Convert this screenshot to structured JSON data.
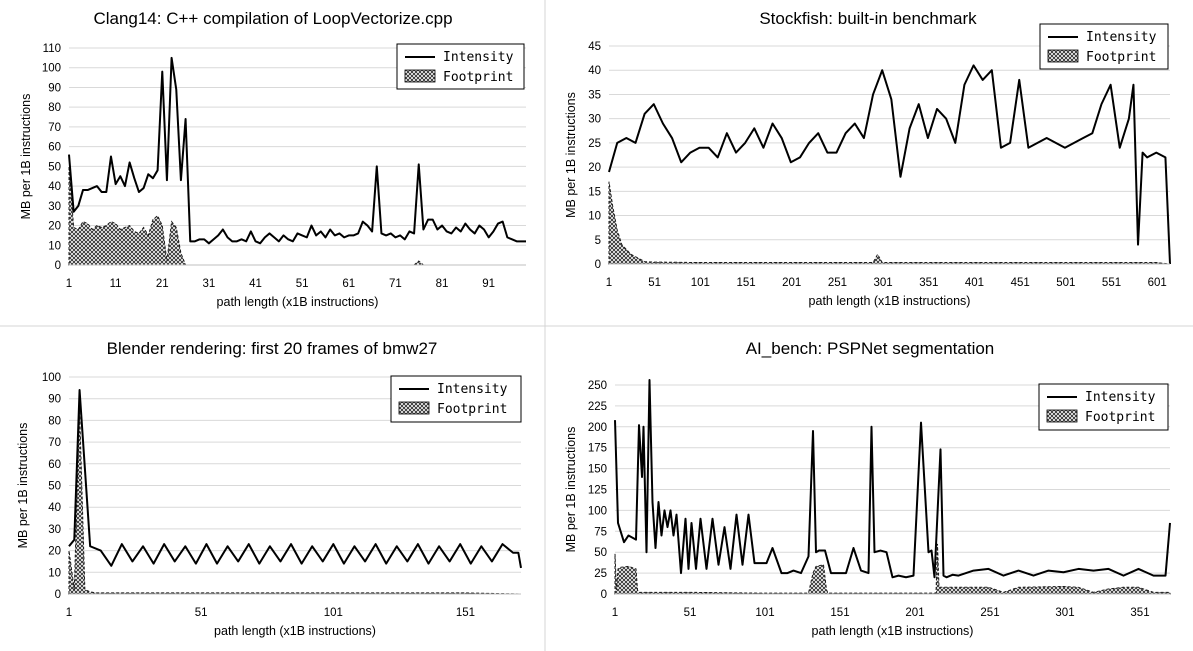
{
  "chart_data": [
    {
      "type": "area",
      "title": "Clang14: C++ compilation of LoopVectorize.cpp",
      "xlabel": "path length (x1B instructions)",
      "ylabel": "MB per 1B instructions",
      "xlim": [
        1,
        99
      ],
      "ylim": [
        0,
        110
      ],
      "xticks": [
        1,
        11,
        21,
        31,
        41,
        51,
        61,
        71,
        81,
        91
      ],
      "yticks": [
        0,
        10,
        20,
        30,
        40,
        50,
        60,
        70,
        80,
        90,
        100,
        110
      ],
      "legend_position": "top-right",
      "series": [
        {
          "name": "Intensity",
          "style": "line",
          "x": [
            1,
            2,
            3,
            4,
            5,
            6,
            7,
            8,
            9,
            10,
            11,
            12,
            13,
            14,
            15,
            16,
            17,
            18,
            19,
            20,
            21,
            22,
            23,
            24,
            25,
            26,
            27,
            28,
            29,
            30,
            31,
            32,
            33,
            34,
            35,
            36,
            37,
            38,
            39,
            40,
            41,
            42,
            43,
            44,
            45,
            46,
            47,
            48,
            49,
            50,
            51,
            52,
            53,
            54,
            55,
            56,
            57,
            58,
            59,
            60,
            61,
            62,
            63,
            64,
            65,
            66,
            67,
            68,
            69,
            70,
            71,
            72,
            73,
            74,
            75,
            76,
            77,
            78,
            79,
            80,
            81,
            82,
            83,
            84,
            85,
            86,
            87,
            88,
            89,
            90,
            91,
            92,
            93,
            94,
            95,
            96,
            97,
            98,
            99
          ],
          "values": [
            56,
            27,
            30,
            38,
            38,
            39,
            40,
            37,
            37,
            55,
            41,
            45,
            40,
            52,
            44,
            37,
            39,
            46,
            44,
            48,
            98,
            43,
            105,
            89,
            43,
            74,
            12,
            12,
            13,
            13,
            11,
            13,
            15,
            18,
            14,
            12,
            12,
            13,
            12,
            17,
            12,
            11,
            14,
            16,
            14,
            12,
            15,
            13,
            12,
            16,
            15,
            14,
            20,
            15,
            17,
            14,
            18,
            15,
            16,
            14,
            15,
            15,
            16,
            22,
            20,
            17,
            50,
            16,
            15,
            16,
            14,
            15,
            13,
            17,
            16,
            51,
            18,
            23,
            23,
            18,
            20,
            17,
            16,
            19,
            17,
            21,
            18,
            16,
            20,
            18,
            14,
            17,
            21,
            22,
            14,
            13,
            12,
            12,
            12
          ]
        },
        {
          "name": "Footprint",
          "style": "hatched-area",
          "x": [
            1,
            2,
            3,
            4,
            5,
            6,
            7,
            8,
            9,
            10,
            11,
            12,
            13,
            14,
            15,
            16,
            17,
            18,
            19,
            20,
            21,
            22,
            23,
            24,
            25,
            26,
            27,
            28,
            29,
            30,
            31,
            32,
            33,
            34,
            35,
            36,
            37,
            38,
            39,
            40,
            41,
            42,
            43,
            44,
            45,
            46,
            47,
            48,
            49,
            50,
            51,
            52,
            53,
            54,
            55,
            56,
            57,
            58,
            59,
            60,
            61,
            62,
            63,
            64,
            65,
            66,
            67,
            68,
            69,
            70,
            71,
            72,
            73,
            74,
            75,
            76,
            77,
            78,
            79,
            80,
            81,
            82,
            83,
            84,
            85,
            86,
            87,
            88,
            89,
            90,
            91,
            92,
            93,
            94,
            95,
            96,
            97,
            98,
            99
          ],
          "values": [
            50,
            19,
            18,
            22,
            21,
            18,
            20,
            19,
            20,
            22,
            21,
            18,
            19,
            20,
            17,
            16,
            19,
            15,
            23,
            25,
            20,
            2,
            22,
            19,
            6,
            0,
            0,
            0,
            0,
            0,
            0,
            0,
            0,
            0,
            0,
            0,
            0,
            0,
            0,
            0,
            0,
            0,
            0,
            0,
            0,
            0,
            0,
            0,
            0,
            0,
            0,
            0,
            0,
            0,
            0,
            0,
            0,
            0,
            0,
            0,
            0,
            0,
            0,
            0,
            0,
            0,
            0,
            0,
            0,
            0,
            0,
            0,
            0,
            0,
            0,
            2,
            0,
            0,
            0,
            0,
            0,
            0,
            0,
            0,
            0,
            0,
            0,
            0,
            0,
            0,
            0,
            0,
            0,
            0,
            0,
            0,
            0,
            0,
            0
          ]
        }
      ]
    },
    {
      "type": "area",
      "title": "Stockfish: built-in benchmark",
      "xlabel": "path length (x1B instructions)",
      "ylabel": "MB per 1B instructions",
      "xlim": [
        1,
        615
      ],
      "ylim": [
        0,
        45
      ],
      "xticks": [
        1,
        51,
        101,
        151,
        201,
        251,
        301,
        351,
        401,
        451,
        501,
        551,
        601
      ],
      "yticks": [
        0,
        5,
        10,
        15,
        20,
        25,
        30,
        35,
        40,
        45
      ],
      "legend_position": "top-right",
      "series": [
        {
          "name": "Intensity",
          "style": "line",
          "x": [
            1,
            10,
            20,
            30,
            40,
            50,
            60,
            70,
            80,
            90,
            100,
            110,
            120,
            130,
            140,
            150,
            160,
            170,
            180,
            190,
            200,
            210,
            220,
            230,
            240,
            250,
            260,
            270,
            280,
            290,
            300,
            310,
            320,
            330,
            340,
            350,
            360,
            370,
            380,
            390,
            400,
            410,
            420,
            430,
            440,
            450,
            460,
            470,
            480,
            490,
            500,
            510,
            520,
            530,
            540,
            550,
            560,
            570,
            575,
            580,
            585,
            590,
            600,
            610,
            615
          ],
          "values": [
            19,
            25,
            26,
            25,
            31,
            33,
            29,
            26,
            21,
            23,
            24,
            24,
            22,
            27,
            23,
            25,
            28,
            24,
            29,
            26,
            21,
            22,
            25,
            27,
            23,
            23,
            27,
            29,
            26,
            35,
            40,
            34,
            18,
            28,
            33,
            26,
            32,
            30,
            25,
            37,
            41,
            38,
            40,
            24,
            25,
            38,
            24,
            25,
            26,
            25,
            24,
            25,
            26,
            27,
            33,
            37,
            24,
            30,
            37,
            4,
            23,
            22,
            23,
            22,
            0
          ]
        },
        {
          "name": "Footprint",
          "style": "hatched-area",
          "x": [
            1,
            5,
            10,
            15,
            20,
            25,
            30,
            35,
            40,
            50,
            100,
            150,
            200,
            250,
            290,
            295,
            300,
            350,
            400,
            450,
            500,
            550,
            600,
            615
          ],
          "values": [
            17,
            12,
            7,
            4,
            3,
            2,
            1.5,
            1,
            0.5,
            0.4,
            0.3,
            0.3,
            0.3,
            0.3,
            0.3,
            2,
            0.3,
            0.3,
            0.3,
            0.3,
            0.3,
            0.3,
            0.3,
            0
          ]
        }
      ]
    },
    {
      "type": "area",
      "title": "Blender rendering: first 20 frames of bmw27",
      "xlabel": "path length (x1B instructions)",
      "ylabel": "MB per 1B instructions",
      "xlim": [
        1,
        172
      ],
      "ylim": [
        0,
        100
      ],
      "xticks": [
        1,
        51,
        101,
        151
      ],
      "yticks": [
        0,
        10,
        20,
        30,
        40,
        50,
        60,
        70,
        80,
        90,
        100
      ],
      "legend_position": "top-right",
      "series": [
        {
          "name": "Intensity",
          "style": "line",
          "x": [
            1,
            3,
            5,
            9,
            13,
            17,
            21,
            25,
            29,
            33,
            37,
            41,
            45,
            49,
            53,
            57,
            61,
            65,
            69,
            73,
            77,
            81,
            85,
            89,
            93,
            97,
            101,
            105,
            109,
            113,
            117,
            121,
            125,
            129,
            133,
            137,
            141,
            145,
            149,
            153,
            157,
            161,
            165,
            169,
            171,
            172
          ],
          "values": [
            22,
            25,
            94,
            22,
            20,
            13,
            23,
            15,
            22,
            14,
            23,
            15,
            22,
            14,
            23,
            14,
            22,
            15,
            23,
            14,
            22,
            15,
            23,
            14,
            22,
            15,
            23,
            14,
            22,
            15,
            23,
            14,
            22,
            15,
            23,
            14,
            22,
            15,
            23,
            14,
            22,
            15,
            23,
            19,
            19,
            12
          ]
        },
        {
          "name": "Footprint",
          "style": "hatched-area",
          "x": [
            1,
            3,
            5,
            7,
            9,
            11,
            21,
            51,
            101,
            151,
            172
          ],
          "values": [
            20,
            2,
            85,
            2,
            1,
            0.5,
            0.5,
            0.5,
            0.5,
            0.5,
            0
          ]
        }
      ]
    },
    {
      "type": "area",
      "title": "AI_bench: PSPNet segmentation",
      "xlabel": "path length (x1B instructions)",
      "ylabel": "MB per 1B instructions",
      "xlim": [
        1,
        371
      ],
      "ylim": [
        0,
        250
      ],
      "xticks": [
        1,
        51,
        101,
        151,
        201,
        251,
        301,
        351
      ],
      "yticks": [
        0,
        25,
        50,
        75,
        100,
        125,
        150,
        175,
        200,
        225,
        250
      ],
      "legend_position": "top-right",
      "series": [
        {
          "name": "Intensity",
          "style": "line",
          "x": [
            1,
            3,
            7,
            10,
            15,
            17,
            19,
            20,
            22,
            24,
            26,
            28,
            30,
            32,
            34,
            36,
            38,
            40,
            42,
            45,
            48,
            50,
            52,
            55,
            58,
            62,
            66,
            70,
            74,
            78,
            82,
            86,
            90,
            94,
            98,
            102,
            106,
            112,
            116,
            120,
            125,
            130,
            133,
            135,
            137,
            141,
            145,
            150,
            155,
            160,
            165,
            170,
            172,
            174,
            178,
            182,
            186,
            190,
            195,
            200,
            205,
            210,
            212,
            214,
            218,
            220,
            222,
            226,
            230,
            240,
            250,
            260,
            270,
            280,
            290,
            300,
            310,
            320,
            330,
            340,
            350,
            360,
            368,
            371
          ],
          "values": [
            208,
            85,
            62,
            70,
            65,
            202,
            140,
            200,
            50,
            256,
            110,
            55,
            110,
            70,
            100,
            80,
            100,
            70,
            95,
            25,
            90,
            30,
            85,
            30,
            90,
            30,
            90,
            35,
            80,
            30,
            95,
            35,
            95,
            37,
            37,
            37,
            55,
            25,
            25,
            28,
            25,
            45,
            195,
            50,
            52,
            52,
            25,
            25,
            25,
            55,
            28,
            25,
            200,
            50,
            52,
            50,
            20,
            22,
            20,
            22,
            205,
            50,
            52,
            20,
            173,
            22,
            20,
            23,
            22,
            28,
            30,
            22,
            28,
            22,
            28,
            26,
            30,
            28,
            30,
            22,
            30,
            22,
            22,
            85
          ]
        },
        {
          "name": "Footprint",
          "style": "hatched-area",
          "x": [
            1,
            2,
            3,
            5,
            10,
            15,
            16,
            17,
            25,
            50,
            100,
            130,
            133,
            135,
            140,
            142,
            143,
            150,
            200,
            215,
            216,
            217,
            222,
            230,
            250,
            260,
            270,
            300,
            310,
            320,
            330,
            340,
            350,
            360,
            371
          ],
          "values": [
            48,
            5,
            30,
            32,
            33,
            30,
            5,
            2,
            2,
            2,
            1,
            1,
            25,
            33,
            35,
            5,
            1,
            1,
            1,
            1,
            60,
            8,
            8,
            8,
            8,
            2,
            8,
            9,
            8,
            2,
            6,
            8,
            8,
            2,
            2
          ]
        }
      ]
    }
  ]
}
